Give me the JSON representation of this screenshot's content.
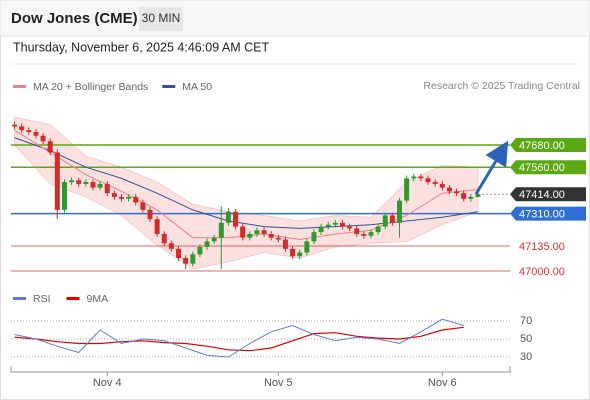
{
  "chart_data": {
    "type": "candlestick",
    "title": "Dow Jones (CME)",
    "interval": "30 MIN",
    "subtitle": "Thursday, November 6, 2025 4:46:09 AM CET",
    "legend": [
      {
        "name": "MA 20 + Bollinger Bands",
        "color": "#f08080"
      },
      {
        "name": "MA 50",
        "color": "#2f5597"
      }
    ],
    "credit": "Research © 2025 Trading Central",
    "categories": [
      null,
      null,
      null,
      null,
      null,
      null,
      null,
      null,
      null,
      null,
      null,
      null,
      null,
      "Nov 4",
      null,
      null,
      null,
      null,
      null,
      null,
      null,
      null,
      null,
      null,
      null,
      null,
      null,
      null,
      null,
      null,
      null,
      null,
      null,
      null,
      null,
      null,
      null,
      "Nov 5",
      null,
      null,
      null,
      null,
      null,
      null,
      null,
      null,
      null,
      null,
      null,
      null,
      null,
      null,
      null,
      null,
      null,
      null,
      null,
      null,
      null,
      null,
      "Nov 6",
      null,
      null,
      null,
      null,
      null
    ],
    "ohlc": [
      [
        47790,
        47805,
        47765,
        47780
      ],
      [
        47780,
        47795,
        47745,
        47760
      ],
      [
        47760,
        47775,
        47735,
        47750
      ],
      [
        47750,
        47765,
        47715,
        47730
      ],
      [
        47730,
        47745,
        47685,
        47700
      ],
      [
        47700,
        47715,
        47625,
        47640
      ],
      [
        47640,
        47655,
        47280,
        47330
      ],
      [
        47330,
        47495,
        47315,
        47480
      ],
      [
        47480,
        47505,
        47465,
        47490
      ],
      [
        47490,
        47505,
        47455,
        47470
      ],
      [
        47470,
        47495,
        47455,
        47480
      ],
      [
        47480,
        47495,
        47435,
        47450
      ],
      [
        47450,
        47485,
        47435,
        47470
      ],
      [
        47470,
        47485,
        47405,
        47420
      ],
      [
        47420,
        47435,
        47385,
        47400
      ],
      [
        47400,
        47415,
        47375,
        47390
      ],
      [
        47390,
        47415,
        47375,
        47400
      ],
      [
        47400,
        47415,
        47355,
        47370
      ],
      [
        47370,
        47385,
        47315,
        47330
      ],
      [
        47330,
        47345,
        47265,
        47280
      ],
      [
        47280,
        47295,
        47185,
        47200
      ],
      [
        47200,
        47215,
        47135,
        47150
      ],
      [
        47150,
        47165,
        47105,
        47120
      ],
      [
        47120,
        47135,
        47055,
        47070
      ],
      [
        47070,
        47085,
        47010,
        47040
      ],
      [
        47040,
        47105,
        47025,
        47090
      ],
      [
        47090,
        47145,
        47075,
        47130
      ],
      [
        47130,
        47175,
        47115,
        47160
      ],
      [
        47160,
        47195,
        47145,
        47180
      ],
      [
        47180,
        47350,
        47010,
        47260
      ],
      [
        47260,
        47340,
        47245,
        47320
      ],
      [
        47320,
        47335,
        47225,
        47240
      ],
      [
        47240,
        47255,
        47165,
        47180
      ],
      [
        47180,
        47215,
        47165,
        47200
      ],
      [
        47200,
        47235,
        47185,
        47220
      ],
      [
        47220,
        47235,
        47185,
        47200
      ],
      [
        47200,
        47215,
        47165,
        47180
      ],
      [
        47180,
        47195,
        47155,
        47170
      ],
      [
        47170,
        47185,
        47105,
        47120
      ],
      [
        47120,
        47135,
        47065,
        47080
      ],
      [
        47080,
        47115,
        47065,
        47100
      ],
      [
        47100,
        47175,
        47085,
        47160
      ],
      [
        47160,
        47225,
        47145,
        47210
      ],
      [
        47210,
        47255,
        47195,
        47240
      ],
      [
        47240,
        47265,
        47225,
        47250
      ],
      [
        47250,
        47275,
        47235,
        47260
      ],
      [
        47260,
        47275,
        47225,
        47240
      ],
      [
        47240,
        47255,
        47215,
        47230
      ],
      [
        47230,
        47245,
        47185,
        47200
      ],
      [
        47200,
        47215,
        47175,
        47190
      ],
      [
        47190,
        47225,
        47175,
        47210
      ],
      [
        47210,
        47255,
        47195,
        47240
      ],
      [
        47240,
        47315,
        47225,
        47300
      ],
      [
        47300,
        47315,
        47245,
        47260
      ],
      [
        47260,
        47395,
        47180,
        47380
      ],
      [
        47380,
        47515,
        47365,
        47500
      ],
      [
        47500,
        47525,
        47485,
        47510
      ],
      [
        47510,
        47525,
        47485,
        47500
      ],
      [
        47500,
        47515,
        47465,
        47480
      ],
      [
        47480,
        47495,
        47455,
        47470
      ],
      [
        47470,
        47485,
        47435,
        47450
      ],
      [
        47450,
        47465,
        47415,
        47430
      ],
      [
        47430,
        47445,
        47405,
        47420
      ],
      [
        47420,
        47435,
        47375,
        47390
      ],
      [
        47390,
        47415,
        47375,
        47400
      ],
      [
        47400,
        47425,
        47395,
        47414
      ]
    ],
    "up_color": "#2e9a2e",
    "down_color": "#d42a2a",
    "ylim": [
      46950,
      47850
    ],
    "ma_index": [
      0,
      5,
      10,
      15,
      20,
      25,
      30,
      35,
      40,
      45,
      50,
      55,
      60,
      65
    ],
    "ma50": [
      47720,
      47650,
      47560,
      47500,
      47420,
      47330,
      47270,
      47240,
      47230,
      47240,
      47250,
      47270,
      47290,
      47320
    ],
    "ma20": [
      47760,
      47640,
      47520,
      47430,
      47330,
      47180,
      47180,
      47200,
      47170,
      47200,
      47220,
      47300,
      47420,
      47440
    ],
    "bb_upper": [
      47830,
      47790,
      47620,
      47560,
      47480,
      47360,
      47320,
      47300,
      47270,
      47300,
      47290,
      47480,
      47570,
      47560
    ],
    "bb_lower": [
      47680,
      47470,
      47400,
      47300,
      47140,
      47010,
      47050,
      47100,
      47070,
      47130,
      47150,
      47160,
      47250,
      47320
    ],
    "band_color": "#fde0e0",
    "levels": [
      {
        "value": 47680,
        "label": "47680.00",
        "color": "#5aa814",
        "style": "box"
      },
      {
        "value": 47560,
        "label": "47560.00",
        "color": "#5aa814",
        "style": "box"
      },
      {
        "value": 47414,
        "label": "47414.00",
        "color": "#333333",
        "style": "marker"
      },
      {
        "value": 47310,
        "label": "47310.00",
        "color": "#2f6fd6",
        "style": "box"
      },
      {
        "value": 47135,
        "label": "47135.00",
        "color": "#e03030",
        "style": "text"
      },
      {
        "value": 47000,
        "label": "47000.00",
        "color": "#e03030",
        "style": "text"
      }
    ],
    "rsi_legend": [
      {
        "name": "RSI",
        "color": "#5b7fd6"
      },
      {
        "name": "9MA",
        "color": "#e00000"
      }
    ],
    "rsi_index": [
      0,
      3,
      6,
      9,
      12,
      15,
      18,
      21,
      24,
      27,
      30,
      33,
      36,
      39,
      42,
      45,
      48,
      51,
      54,
      57,
      60,
      63
    ],
    "rsi": [
      55,
      50,
      42,
      35,
      60,
      45,
      50,
      48,
      40,
      32,
      30,
      45,
      58,
      65,
      55,
      48,
      52,
      50,
      45,
      58,
      72,
      65
    ],
    "rsi_ma": [
      52,
      50,
      47,
      45,
      45,
      47,
      48,
      46,
      45,
      42,
      38,
      37,
      40,
      48,
      56,
      57,
      53,
      51,
      50,
      53,
      60,
      63
    ],
    "rsi_ylim": [
      15,
      80
    ],
    "rsi_yticks": [
      30,
      50,
      70
    ]
  }
}
